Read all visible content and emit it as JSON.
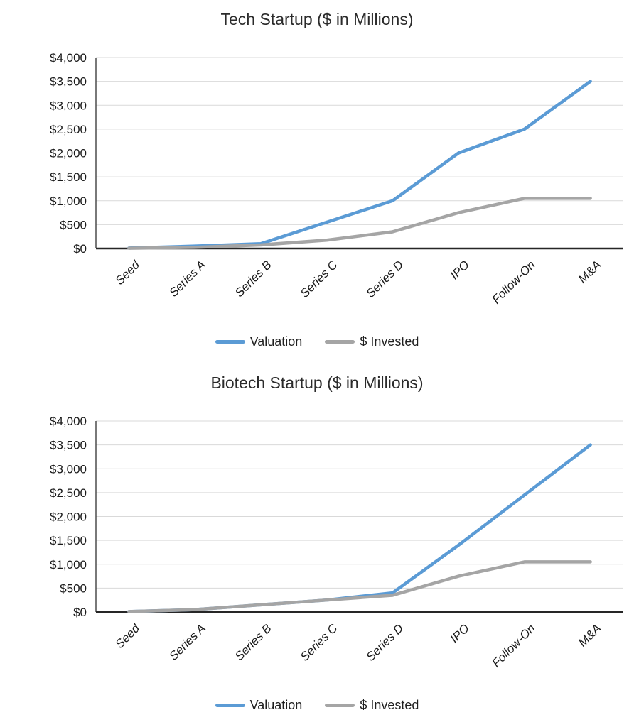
{
  "page": {
    "background_color": "#ffffff"
  },
  "chart_data": [
    {
      "type": "line",
      "title": "Tech Startup ($ in Millions)",
      "categories": [
        "Seed",
        "Series A",
        "Series B",
        "Series C",
        "Series D",
        "IPO",
        "Follow-On",
        "M&A"
      ],
      "series": [
        {
          "name": "Valuation",
          "color": "#5B9BD5",
          "values": [
            10,
            50,
            100,
            550,
            1000,
            2000,
            2500,
            3500
          ]
        },
        {
          "name": "$ Invested",
          "color": "#A5A5A5",
          "values": [
            5,
            25,
            75,
            175,
            350,
            750,
            1050,
            1050
          ]
        }
      ],
      "xlabel": "",
      "ylabel": "",
      "ylim": [
        0,
        4000
      ],
      "ytick_step": 500,
      "ytick_labels": [
        "$0",
        "$500",
        "$1,000",
        "$1,500",
        "$2,000",
        "$2,500",
        "$3,000",
        "$3,500",
        "$4,000"
      ],
      "grid": true,
      "grid_color": "#D9D9D9",
      "axis_color": "#262626",
      "legend_position": "bottom"
    },
    {
      "type": "line",
      "title": "Biotech Startup ($ in Millions)",
      "categories": [
        "Seed",
        "Series A",
        "Series B",
        "Series C",
        "Series D",
        "IPO",
        "Follow-On",
        "M&A"
      ],
      "series": [
        {
          "name": "Valuation",
          "color": "#5B9BD5",
          "values": [
            10,
            50,
            150,
            250,
            400,
            1400,
            2450,
            3500
          ]
        },
        {
          "name": "$ Invested",
          "color": "#A5A5A5",
          "values": [
            10,
            50,
            150,
            250,
            350,
            750,
            1050,
            1050
          ]
        }
      ],
      "xlabel": "",
      "ylabel": "",
      "ylim": [
        0,
        4000
      ],
      "ytick_step": 500,
      "ytick_labels": [
        "$0",
        "$500",
        "$1,000",
        "$1,500",
        "$2,000",
        "$2,500",
        "$3,000",
        "$3,500",
        "$4,000"
      ],
      "grid": true,
      "grid_color": "#D9D9D9",
      "axis_color": "#262626",
      "legend_position": "bottom"
    }
  ]
}
